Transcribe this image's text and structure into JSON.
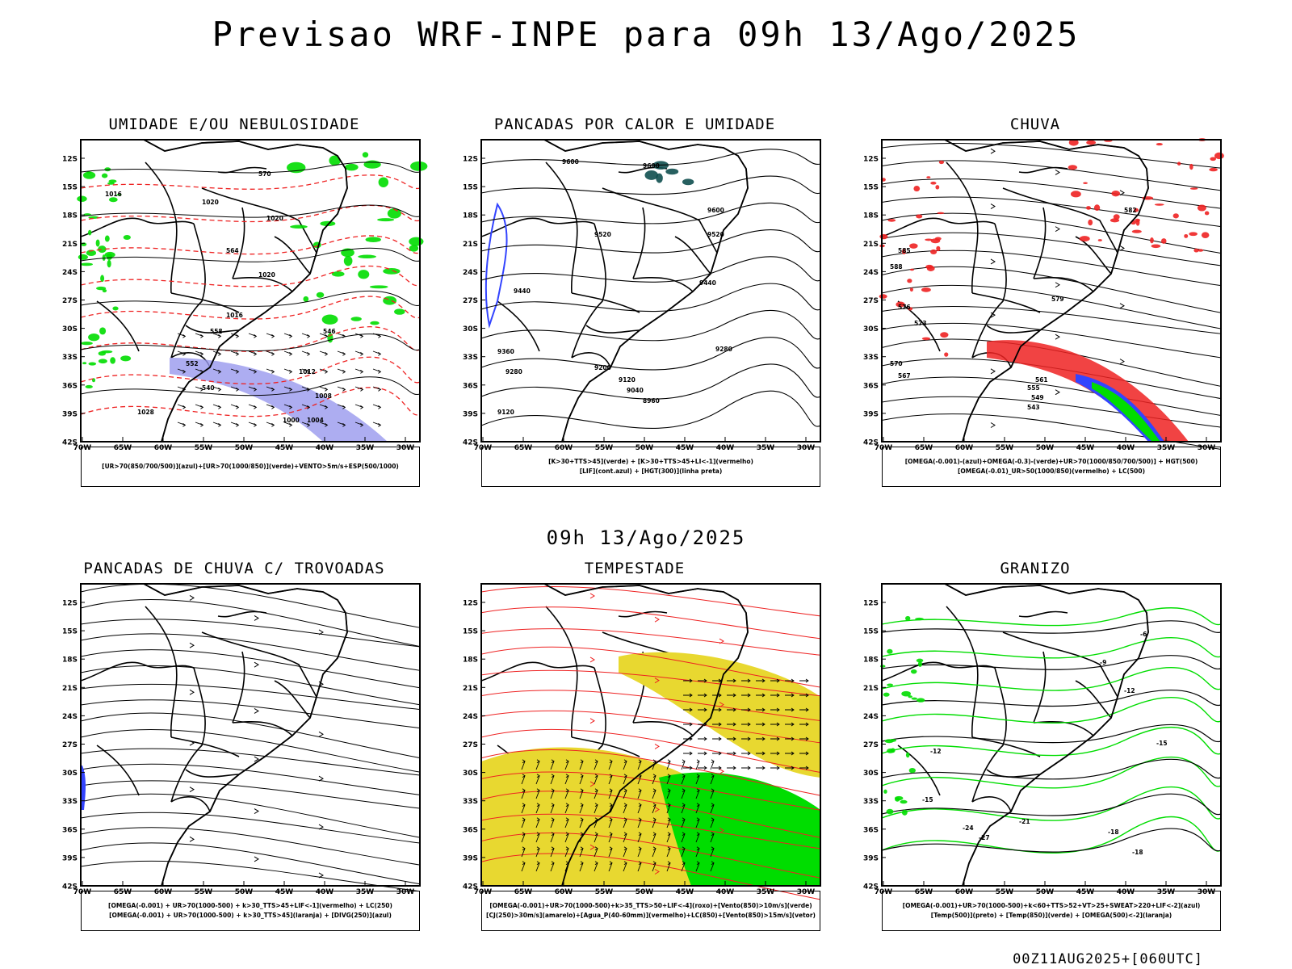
{
  "title": "Previsao WRF-INPE  para 09h 13/Ago/2025",
  "mid_time": "09h 13/Ago/2025",
  "footer": "00Z11AUG2025+[060UTC]",
  "axes": {
    "lat_labels": [
      "12S",
      "15S",
      "18S",
      "21S",
      "24S",
      "27S",
      "30S",
      "33S",
      "36S",
      "39S",
      "42S"
    ],
    "lon_labels": [
      "70W",
      "65W",
      "60W",
      "55W",
      "50W",
      "45W",
      "40W",
      "35W",
      "30W"
    ]
  },
  "colors": {
    "green": "#00dd00",
    "blue": "#3344ff",
    "red": "#ee2222",
    "yellow": "#e8d830",
    "lavender": "#9999ee",
    "teal": "#0f4f4f",
    "black": "#000000"
  },
  "panels": [
    {
      "id": "umidade",
      "title": "UMIDADE E/OU NEBULOSIDADE",
      "legend": [
        "[UR>70(850/700/500)](azul)+[UR>70(1000/850)](verde)+VENTO>5m/s+ESP(500/1000)"
      ],
      "contour_labels": [
        "1016",
        "1020",
        "1020",
        "1020",
        "1016",
        "1012",
        "1008",
        "1004",
        "1000",
        "1028",
        "570",
        "564",
        "558",
        "552",
        "546",
        "540"
      ]
    },
    {
      "id": "pancadas_calor",
      "title": "PANCADAS POR CALOR E UMIDADE",
      "legend": [
        "[K>30+TTS>45](verde) + [K>30+TTS>45+LI<-1](vermelho)",
        "[LIF](cont.azul) + [HGT(300)](linha preta)"
      ],
      "contour_labels": [
        "9600",
        "9600",
        "9520",
        "9520",
        "9440",
        "9440",
        "9360",
        "9280",
        "9280",
        "9200",
        "9120",
        "9040",
        "8960",
        "9120",
        "9600"
      ]
    },
    {
      "id": "chuva",
      "title": "CHUVA",
      "legend": [
        "[OMEGA(-0.001)-(azul)+OMEGA(-0.3)-(verde)+UR>70(1000/850/700/500)] + HGT(500)",
        "[OMEGA(-0.01)_UR>50(1000/850)(vermelho) + LC(500)"
      ],
      "contour_labels": [
        "582",
        "576",
        "579",
        "573",
        "570",
        "567",
        "561",
        "555",
        "549",
        "543",
        "585",
        "588"
      ]
    },
    {
      "id": "pancadas_trovoadas",
      "title": "PANCADAS DE CHUVA C/ TROVOADAS",
      "legend": [
        "[OMEGA(-0.001) + UR>70(1000-500) + k>30_TTS>45+LIF<-1](vermelho) + LC(250)",
        "[OMEGA(-0.001) + UR>70(1000-500) + k>30_TTS>45](laranja) + [DIVG(250)](azul)"
      ],
      "contour_labels": []
    },
    {
      "id": "tempestade",
      "title": "TEMPESTADE",
      "legend": [
        "[OMEGA(-0.001)+UR>70(1000-500)+k>35_TTS>50+LIF<-4](roxo)+[Vento(850)>10m/s](verde)",
        "[CJ(250)>30m/s](amarelo)+[Agua_P(40-60mm)](vermelho)+LC(850)+[Vento(850)>15m/s](vetor)"
      ],
      "contour_labels": []
    },
    {
      "id": "granizo",
      "title": "GRANIZO",
      "legend": [
        "[OMEGA(-0.001)+UR>70(1000-500)+k<60+TTS>52+VT>25+SWEAT>220+LIF<-2](azul)",
        "[Temp(500)](preto) + [Temp(850)](verde) + [OMEGA(500)<-2](laranja)"
      ],
      "contour_labels": [
        "-6",
        "-9",
        "-12",
        "-12",
        "-15",
        "-15",
        "-18",
        "-18",
        "-21",
        "-24",
        "-27"
      ]
    }
  ]
}
